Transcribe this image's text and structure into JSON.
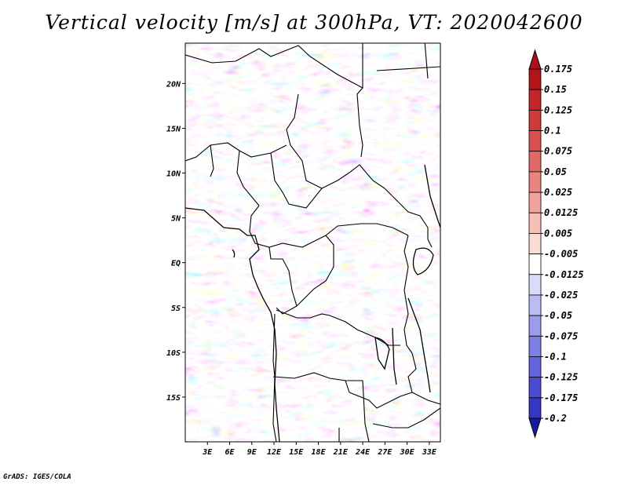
{
  "title": "Vertical velocity [m/s] at 300hPa, VT: 2020042600",
  "credit": "GrADS: IGES/COLA",
  "map": {
    "lat_range": [
      -20,
      24.5
    ],
    "lon_range": [
      0,
      34.5
    ],
    "lat_ticks": [
      {
        "value": 20,
        "label": "20N"
      },
      {
        "value": 15,
        "label": "15N"
      },
      {
        "value": 10,
        "label": "10N"
      },
      {
        "value": 5,
        "label": "5N"
      },
      {
        "value": 0,
        "label": "EQ"
      },
      {
        "value": -5,
        "label": "5S"
      },
      {
        "value": -10,
        "label": "10S"
      },
      {
        "value": -15,
        "label": "15S"
      }
    ],
    "lon_ticks": [
      {
        "value": 3,
        "label": "3E"
      },
      {
        "value": 6,
        "label": "6E"
      },
      {
        "value": 9,
        "label": "9E"
      },
      {
        "value": 12,
        "label": "12E"
      },
      {
        "value": 15,
        "label": "15E"
      },
      {
        "value": 18,
        "label": "18E"
      },
      {
        "value": 21,
        "label": "21E"
      },
      {
        "value": 24,
        "label": "24E"
      },
      {
        "value": 27,
        "label": "27E"
      },
      {
        "value": 30,
        "label": "30E"
      },
      {
        "value": 33,
        "label": "33E"
      }
    ]
  },
  "colorbar": {
    "levels": [
      {
        "label": "0.175",
        "color": "#b3141a"
      },
      {
        "label": "0.15",
        "color": "#c0262b"
      },
      {
        "label": "0.125",
        "color": "#cc3a3c"
      },
      {
        "label": "0.1",
        "color": "#d8504f"
      },
      {
        "label": "0.075",
        "color": "#e06a67"
      },
      {
        "label": "0.05",
        "color": "#e8857f"
      },
      {
        "label": "0.025",
        "color": "#f0a29b"
      },
      {
        "label": "0.0125",
        "color": "#f6bfb8"
      },
      {
        "label": "0.005",
        "color": "#fadcd6"
      },
      {
        "label": "-0.005",
        "color": "#ffffff"
      },
      {
        "label": "-0.0125",
        "color": "#dcdcfa"
      },
      {
        "label": "-0.025",
        "color": "#bcbcf4"
      },
      {
        "label": "-0.05",
        "color": "#9c9cee"
      },
      {
        "label": "-0.075",
        "color": "#7e7ee6"
      },
      {
        "label": "-0.1",
        "color": "#6464dc"
      },
      {
        "label": "-0.125",
        "color": "#4c4cd2"
      },
      {
        "label": "-0.175",
        "color": "#3636c4"
      },
      {
        "label": "-0.2",
        "color": "#2222b0"
      }
    ],
    "top_triangle_color": "#a8101a",
    "bottom_triangle_color": "#1a1aa0"
  }
}
